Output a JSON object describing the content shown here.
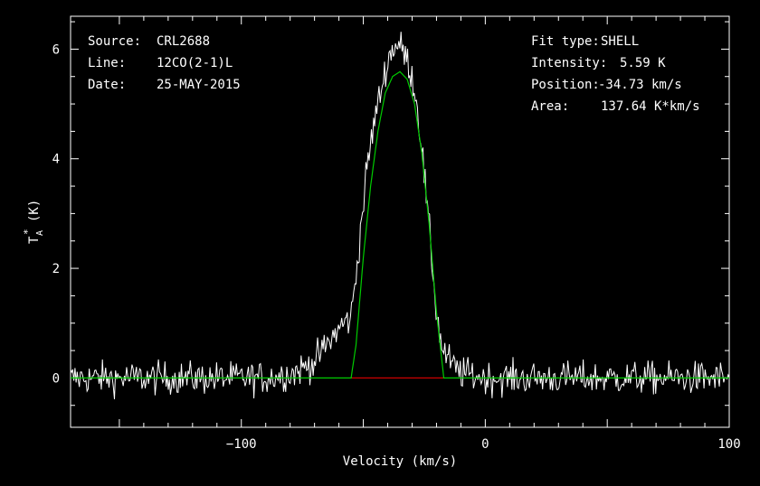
{
  "header_left": {
    "source_label": "Source:",
    "source_value": "CRL2688",
    "line_label": "Line:",
    "line_value": "12CO(2-1)L",
    "date_label": "Date:",
    "date_value": "25-MAY-2015"
  },
  "header_right": {
    "fit_label": "Fit type:",
    "fit_value": "SHELL",
    "intensity_label": "Intensity:",
    "intensity_value": "5.59 K",
    "position_label": "Position:",
    "position_value": "-34.73 km/s",
    "area_label": "Area:",
    "area_value": "137.64 K*km/s"
  },
  "chart_data": {
    "type": "line",
    "xlabel": "Velocity (km/s)",
    "ylabel": "T",
    "ylabel_sub": "A",
    "ylabel_sup": "*",
    "ylabel_unit": "(K)",
    "xlim": [
      -170,
      100
    ],
    "ylim": [
      -0.9,
      6.6
    ],
    "x_ticks": [
      -100,
      0,
      100
    ],
    "x_tick_labels": [
      "-100",
      "0",
      "100"
    ],
    "y_ticks": [
      0,
      2,
      4,
      6
    ],
    "y_tick_labels": [
      "0",
      "2",
      "4",
      "6"
    ],
    "fit_window": [
      -55,
      -17
    ],
    "colors": {
      "spectrum": "#ffffff",
      "fit": "#00cc00",
      "baseline": "#cc0000",
      "axes": "#ffffff"
    },
    "series": [
      {
        "kind": "spectrum",
        "x": [
          -170,
          -150,
          -130,
          -110,
          -90,
          -78,
          -70,
          -65,
          -60,
          -58,
          -55,
          -52,
          -50,
          -48,
          -45,
          -42,
          -40,
          -38,
          -36,
          -34,
          -32,
          -30,
          -28,
          -26,
          -24,
          -22,
          -20,
          -18,
          -16,
          -13,
          -10,
          0,
          20,
          50,
          80,
          100
        ],
        "y": [
          0,
          0,
          0,
          0,
          0,
          0.1,
          0.3,
          0.6,
          0.9,
          1.0,
          1.1,
          2.3,
          3.2,
          4.0,
          4.8,
          5.4,
          5.8,
          6.0,
          6.1,
          6.0,
          5.8,
          5.5,
          5.0,
          4.2,
          3.2,
          2.2,
          1.2,
          0.6,
          0.4,
          0.2,
          0.1,
          0,
          0,
          0,
          0,
          0
        ],
        "noise_rms": 0.15
      },
      {
        "kind": "fit",
        "x": [
          -170,
          -55,
          -53,
          -50,
          -47,
          -44,
          -41,
          -38,
          -35,
          -32,
          -29,
          -26,
          -23,
          -20,
          -17,
          -15,
          100
        ],
        "y": [
          0,
          0,
          0.6,
          2.2,
          3.5,
          4.5,
          5.2,
          5.5,
          5.59,
          5.45,
          5.0,
          4.1,
          2.8,
          1.2,
          0.0,
          0,
          0
        ]
      }
    ]
  }
}
